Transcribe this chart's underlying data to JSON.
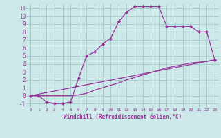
{
  "xlabel": "Windchill (Refroidissement éolien,°C)",
  "bg_color": "#cce8e8",
  "grid_color": "#aacccc",
  "line_color": "#993399",
  "xlim": [
    -0.5,
    23.5
  ],
  "ylim": [
    -1.5,
    11.5
  ],
  "xticks": [
    0,
    1,
    2,
    3,
    4,
    5,
    6,
    7,
    8,
    9,
    10,
    11,
    12,
    13,
    14,
    15,
    16,
    17,
    18,
    19,
    20,
    21,
    22,
    23
  ],
  "yticks": [
    -1,
    0,
    1,
    2,
    3,
    4,
    5,
    6,
    7,
    8,
    9,
    10,
    11
  ],
  "curve1_x": [
    0,
    1,
    2,
    3,
    4,
    5,
    6,
    7,
    8,
    9,
    10,
    11,
    12,
    13,
    14,
    15,
    16,
    17,
    18,
    19,
    20,
    21,
    22,
    23
  ],
  "curve1_y": [
    0,
    0,
    -0.8,
    -1,
    -1,
    -0.8,
    2.2,
    5,
    5.5,
    6.5,
    7.2,
    9.3,
    10.5,
    11.2,
    11.2,
    11.2,
    11.2,
    8.7,
    8.7,
    8.7,
    8.7,
    8.0,
    8.0,
    4.5
  ],
  "curve2_x": [
    0,
    1,
    2,
    3,
    4,
    5,
    6,
    7,
    8,
    9,
    10,
    11,
    12,
    13,
    14,
    15,
    16,
    17,
    18,
    19,
    20,
    21,
    22,
    23
  ],
  "curve2_y": [
    0,
    0,
    0,
    0,
    0,
    0,
    0.1,
    0.3,
    0.7,
    1.0,
    1.3,
    1.6,
    2.0,
    2.3,
    2.6,
    2.9,
    3.2,
    3.5,
    3.7,
    3.9,
    4.1,
    4.2,
    4.3,
    4.5
  ],
  "curve3_x": [
    0,
    23
  ],
  "curve3_y": [
    0,
    4.5
  ],
  "font_family": "monospace"
}
